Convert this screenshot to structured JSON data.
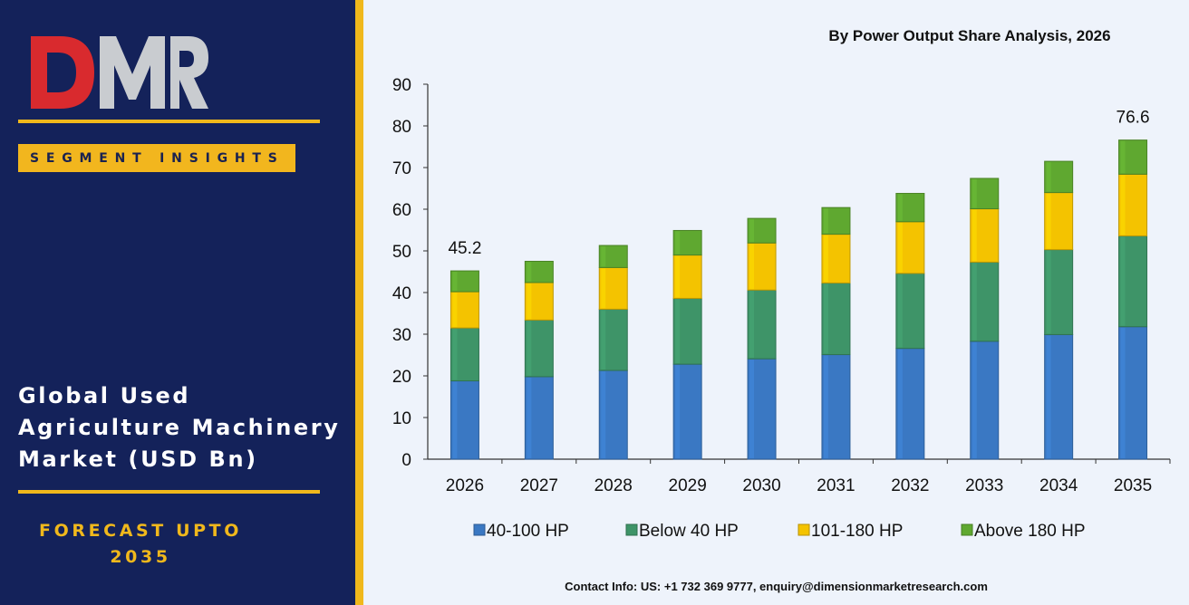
{
  "brand": {
    "logo_text": "DMR",
    "logo_colors": {
      "D": "#d92a2e",
      "M": "#c9ccd0",
      "R": "#c9ccd0"
    }
  },
  "sidebar": {
    "segment_label": "SEGMENT INSIGHTS",
    "title_lines": [
      "Global Used",
      "Agriculture Machinery",
      "Market (USD Bn)"
    ],
    "forecast_lines": [
      "FORECAST UPTO",
      "2035"
    ]
  },
  "colors": {
    "sidebar_bg": "#14225a",
    "accent": "#f0b81c",
    "panel_bg": "#eef3fb"
  },
  "chart_data": {
    "type": "bar",
    "stacked": true,
    "title": "By Power Output Share Analysis, 2026",
    "categories": [
      "2026",
      "2027",
      "2028",
      "2029",
      "2030",
      "2031",
      "2032",
      "2033",
      "2034",
      "2035"
    ],
    "series": [
      {
        "name": "40-100 HP",
        "color": "#3a78c3",
        "values": [
          18.8,
          19.8,
          21.3,
          22.8,
          24.1,
          25.1,
          26.6,
          28.3,
          29.9,
          31.8
        ]
      },
      {
        "name": "Below 40 HP",
        "color": "#3e9468",
        "values": [
          12.7,
          13.6,
          14.7,
          15.8,
          16.5,
          17.2,
          18.0,
          19.0,
          20.4,
          21.8
        ]
      },
      {
        "name": "101-180 HP",
        "color": "#f4c300",
        "values": [
          8.7,
          9.0,
          10.0,
          10.4,
          11.3,
          11.7,
          12.4,
          12.8,
          13.7,
          14.8
        ]
      },
      {
        "name": "Above 180 HP",
        "color": "#5fa830",
        "values": [
          5.0,
          5.1,
          5.3,
          5.9,
          5.9,
          6.4,
          6.8,
          7.3,
          7.5,
          8.2
        ]
      }
    ],
    "data_labels": [
      {
        "category": "2026",
        "text": "45.2"
      },
      {
        "category": "2035",
        "text": "76.6"
      }
    ],
    "ylim": [
      0,
      90
    ],
    "yticks": [
      "0",
      "10",
      "20",
      "30",
      "40",
      "50",
      "60",
      "70",
      "80",
      "90"
    ],
    "xlabel": "",
    "ylabel": "",
    "grid": false,
    "legend_position": "bottom"
  },
  "footer": {
    "contact": "Contact Info: US: +1 732 369 9777, enquiry@dimensionmarketresearch.com"
  }
}
